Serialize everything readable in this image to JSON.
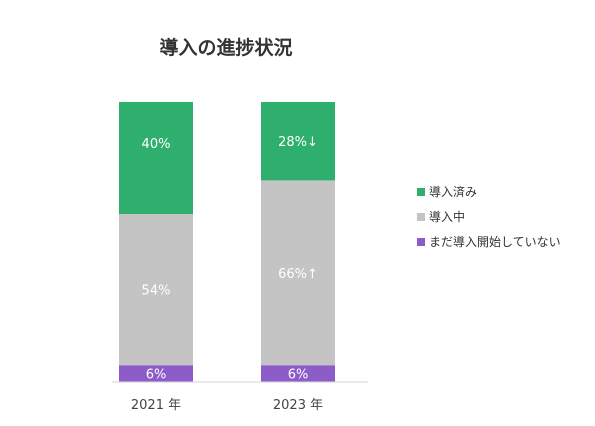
{
  "chart_data": {
    "type": "bar",
    "stacked": true,
    "percent": true,
    "title": "導入の進捗状況",
    "categories": [
      "2021 年",
      "2023 年"
    ],
    "series": [
      {
        "name": "まだ導入開始していない",
        "color": "#8e5cc9",
        "values": [
          6,
          6
        ],
        "labels": [
          "6%",
          "6%"
        ]
      },
      {
        "name": "導入中",
        "color": "#c4c4c4",
        "values": [
          54,
          66
        ],
        "labels": [
          "54%",
          "66%↑"
        ]
      },
      {
        "name": "導入済み",
        "color": "#2eaf6e",
        "values": [
          40,
          28
        ],
        "labels": [
          "40%",
          "28%↓"
        ]
      }
    ],
    "legend_order": [
      "導入済み",
      "導入中",
      "まだ導入開始していない"
    ],
    "ylim": [
      0,
      100
    ],
    "legend_position": "right"
  }
}
